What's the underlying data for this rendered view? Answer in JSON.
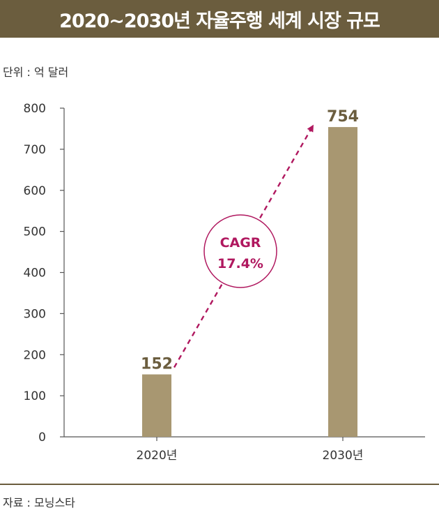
{
  "title": "2020~2030년 자율주행 세계 시장 규모",
  "unit_label": "단위 : 억 달러",
  "source_label": "자료 : 모닝스타",
  "colors": {
    "title_bg": "#6b5d3e",
    "bar": "#a89771",
    "value_label": "#6b5d3e",
    "cagr": "#b0185f"
  },
  "chart_data": {
    "type": "bar",
    "categories": [
      "2020년",
      "2030년"
    ],
    "values": [
      152,
      754
    ],
    "ylim": [
      0,
      800
    ],
    "yticks": [
      0,
      100,
      200,
      300,
      400,
      500,
      600,
      700,
      800
    ],
    "grid": false,
    "annotation": {
      "label": "CAGR",
      "value": "17.4%"
    }
  }
}
